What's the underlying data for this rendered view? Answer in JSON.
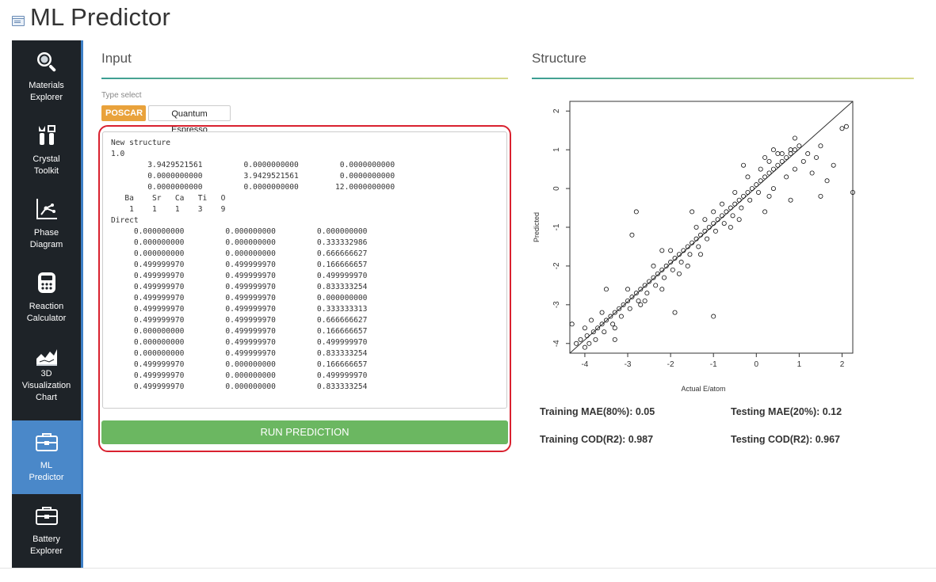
{
  "header": {
    "title": "ML Predictor",
    "icon": "app-window-icon"
  },
  "sidebar": {
    "items": [
      {
        "label_line1": "Materials",
        "label_line2": "Explorer",
        "label_line3": "",
        "icon": "magnifier-icon",
        "active": false
      },
      {
        "label_line1": "Crystal",
        "label_line2": "Toolkit",
        "label_line3": "",
        "icon": "tools-icon",
        "active": false
      },
      {
        "label_line1": "Phase",
        "label_line2": "Diagram",
        "label_line3": "",
        "icon": "phase-diagram-icon",
        "active": false
      },
      {
        "label_line1": "Reaction",
        "label_line2": "Calculator",
        "label_line3": "",
        "icon": "calculator-icon",
        "active": false
      },
      {
        "label_line1": "3D",
        "label_line2": "Visualization",
        "label_line3": "Chart",
        "icon": "chart-3d-icon",
        "active": false
      },
      {
        "label_line1": "ML",
        "label_line2": "Predictor",
        "label_line3": "",
        "icon": "toolbox-icon",
        "active": true
      },
      {
        "label_line1": "Battery",
        "label_line2": "Explorer",
        "label_line3": "",
        "icon": "toolbox-icon",
        "active": false
      }
    ],
    "accent_color": "#4a88c9"
  },
  "input_panel": {
    "title": "Input",
    "type_select_label": "Type select",
    "types": [
      "POSCAR",
      "Quantum Espresso"
    ],
    "selected_type": "POSCAR",
    "structure_text": "New structure\n1.0\n        3.9429521561         0.0000000000         0.0000000000\n        0.0000000000         3.9429521561         0.0000000000\n        0.0000000000         0.0000000000        12.0000000000\n   Ba    Sr   Ca   Ti   O\n    1    1    1    3    9\nDirect\n     0.000000000         0.000000000         0.000000000\n     0.000000000         0.000000000         0.333332986\n     0.000000000         0.000000000         0.666666627\n     0.499999970         0.499999970         0.166666657\n     0.499999970         0.499999970         0.499999970\n     0.499999970         0.499999970         0.833333254\n     0.499999970         0.499999970         0.000000000\n     0.499999970         0.499999970         0.333333313\n     0.499999970         0.499999970         0.666666627\n     0.000000000         0.499999970         0.166666657\n     0.000000000         0.499999970         0.499999970\n     0.000000000         0.499999970         0.833333254\n     0.499999970         0.000000000         0.166666657\n     0.499999970         0.000000000         0.499999970\n     0.499999970         0.000000000         0.833333254",
    "run_button": "RUN PREDICTION",
    "run_color": "#6bb761",
    "poscar_color": "#e9a23b"
  },
  "structure_panel": {
    "title": "Structure",
    "metrics": {
      "training_mae": "Training MAE(80%): 0.05",
      "testing_mae": "Testing MAE(20%): 0.12",
      "training_cod": "Training COD(R2): 0.987",
      "testing_cod": "Testing COD(R2): 0.967"
    }
  },
  "chart_data": {
    "type": "scatter",
    "title": "",
    "xlabel": "Actual E/atom",
    "ylabel": "Predicted",
    "xlim": [
      -4.35,
      2.25
    ],
    "ylim": [
      -4.25,
      2.25
    ],
    "xticks": [
      -4,
      -3,
      -2,
      -1,
      0,
      1,
      2
    ],
    "yticks": [
      -4,
      -3,
      -2,
      -1,
      0,
      1,
      2
    ],
    "diagonal": true,
    "grid": false,
    "marker": "open-circle",
    "series": [
      {
        "points": [
          [
            -4.2,
            -4.0
          ],
          [
            -4.1,
            -3.9
          ],
          [
            -4.0,
            -4.1
          ],
          [
            -3.95,
            -3.8
          ],
          [
            -3.9,
            -4.0
          ],
          [
            -3.8,
            -3.7
          ],
          [
            -3.75,
            -3.9
          ],
          [
            -3.7,
            -3.6
          ],
          [
            -3.6,
            -3.5
          ],
          [
            -3.55,
            -3.7
          ],
          [
            -3.5,
            -3.4
          ],
          [
            -3.4,
            -3.3
          ],
          [
            -3.35,
            -3.5
          ],
          [
            -3.3,
            -3.2
          ],
          [
            -3.2,
            -3.1
          ],
          [
            -3.15,
            -3.3
          ],
          [
            -3.1,
            -3.0
          ],
          [
            -3.0,
            -2.9
          ],
          [
            -2.95,
            -3.1
          ],
          [
            -2.9,
            -2.8
          ],
          [
            -2.8,
            -2.7
          ],
          [
            -2.75,
            -2.9
          ],
          [
            -2.7,
            -2.6
          ],
          [
            -2.6,
            -2.5
          ],
          [
            -2.55,
            -2.7
          ],
          [
            -2.5,
            -2.4
          ],
          [
            -2.4,
            -2.3
          ],
          [
            -2.35,
            -2.5
          ],
          [
            -2.3,
            -2.2
          ],
          [
            -2.2,
            -2.1
          ],
          [
            -2.15,
            -2.3
          ],
          [
            -2.1,
            -2.0
          ],
          [
            -2.0,
            -1.9
          ],
          [
            -1.95,
            -2.1
          ],
          [
            -1.9,
            -1.8
          ],
          [
            -1.8,
            -1.7
          ],
          [
            -1.75,
            -1.9
          ],
          [
            -1.7,
            -1.6
          ],
          [
            -1.6,
            -1.5
          ],
          [
            -1.55,
            -1.7
          ],
          [
            -1.5,
            -1.4
          ],
          [
            -1.4,
            -1.3
          ],
          [
            -1.35,
            -1.5
          ],
          [
            -1.3,
            -1.2
          ],
          [
            -1.2,
            -1.1
          ],
          [
            -1.15,
            -1.3
          ],
          [
            -1.1,
            -1.0
          ],
          [
            -1.0,
            -0.9
          ],
          [
            -0.95,
            -1.1
          ],
          [
            -0.9,
            -0.8
          ],
          [
            -0.8,
            -0.7
          ],
          [
            -0.75,
            -0.9
          ],
          [
            -0.7,
            -0.6
          ],
          [
            -0.6,
            -0.5
          ],
          [
            -0.55,
            -0.7
          ],
          [
            -0.5,
            -0.4
          ],
          [
            -0.4,
            -0.3
          ],
          [
            -0.35,
            -0.5
          ],
          [
            -0.3,
            -0.2
          ],
          [
            -0.2,
            -0.1
          ],
          [
            -0.15,
            -0.3
          ],
          [
            -0.1,
            0.0
          ],
          [
            0.0,
            0.1
          ],
          [
            0.05,
            -0.1
          ],
          [
            0.1,
            0.2
          ],
          [
            0.2,
            0.3
          ],
          [
            0.3,
            0.4
          ],
          [
            0.4,
            0.5
          ],
          [
            0.5,
            0.6
          ],
          [
            0.6,
            0.7
          ],
          [
            0.7,
            0.8
          ],
          [
            0.8,
            0.9
          ],
          [
            0.9,
            1.0
          ],
          [
            -3.0,
            -2.6
          ],
          [
            -2.6,
            -2.9
          ],
          [
            -2.0,
            -1.6
          ],
          [
            -1.6,
            -2.0
          ],
          [
            -1.0,
            -0.6
          ],
          [
            -0.6,
            -1.0
          ],
          [
            -0.2,
            0.3
          ],
          [
            0.3,
            -0.2
          ],
          [
            -3.3,
            -3.6
          ],
          [
            -2.4,
            -2.0
          ],
          [
            -1.8,
            -2.2
          ],
          [
            -1.2,
            -0.8
          ],
          [
            -0.4,
            -0.8
          ],
          [
            0.1,
            0.5
          ],
          [
            0.4,
            0.0
          ],
          [
            0.7,
            0.3
          ],
          [
            0.2,
            0.8
          ],
          [
            -3.6,
            -3.2
          ],
          [
            -2.7,
            -3.0
          ],
          [
            -1.4,
            -1.0
          ],
          [
            -0.8,
            -0.4
          ],
          [
            0.5,
            0.9
          ],
          [
            0.9,
            0.5
          ],
          [
            -3.85,
            -3.4
          ],
          [
            -2.2,
            -2.6
          ],
          [
            -1.3,
            -1.7
          ],
          [
            -0.5,
            -0.1
          ],
          [
            1.0,
            1.1
          ],
          [
            0.8,
            1.0
          ],
          [
            0.6,
            0.9
          ],
          [
            1.2,
            0.9
          ],
          [
            1.5,
            1.1
          ],
          [
            1.4,
            0.8
          ],
          [
            1.1,
            0.7
          ],
          [
            0.4,
            1.0
          ],
          [
            0.3,
            0.7
          ],
          [
            0.9,
            1.3
          ],
          [
            1.5,
            -0.2
          ],
          [
            1.65,
            0.2
          ],
          [
            2.1,
            1.6
          ],
          [
            2.0,
            1.55
          ],
          [
            2.25,
            -0.1
          ],
          [
            1.3,
            0.4
          ],
          [
            1.8,
            0.6
          ],
          [
            -2.8,
            -0.6
          ],
          [
            -1.9,
            -3.2
          ],
          [
            -1.0,
            -3.3
          ],
          [
            -2.9,
            -1.2
          ],
          [
            -1.5,
            -0.6
          ],
          [
            0.8,
            -0.3
          ],
          [
            -3.5,
            -2.6
          ],
          [
            -3.3,
            -3.9
          ],
          [
            -4.3,
            -3.5
          ],
          [
            -4.0,
            -3.6
          ],
          [
            -2.2,
            -1.6
          ],
          [
            -0.3,
            0.6
          ],
          [
            0.2,
            -0.6
          ]
        ]
      }
    ]
  }
}
